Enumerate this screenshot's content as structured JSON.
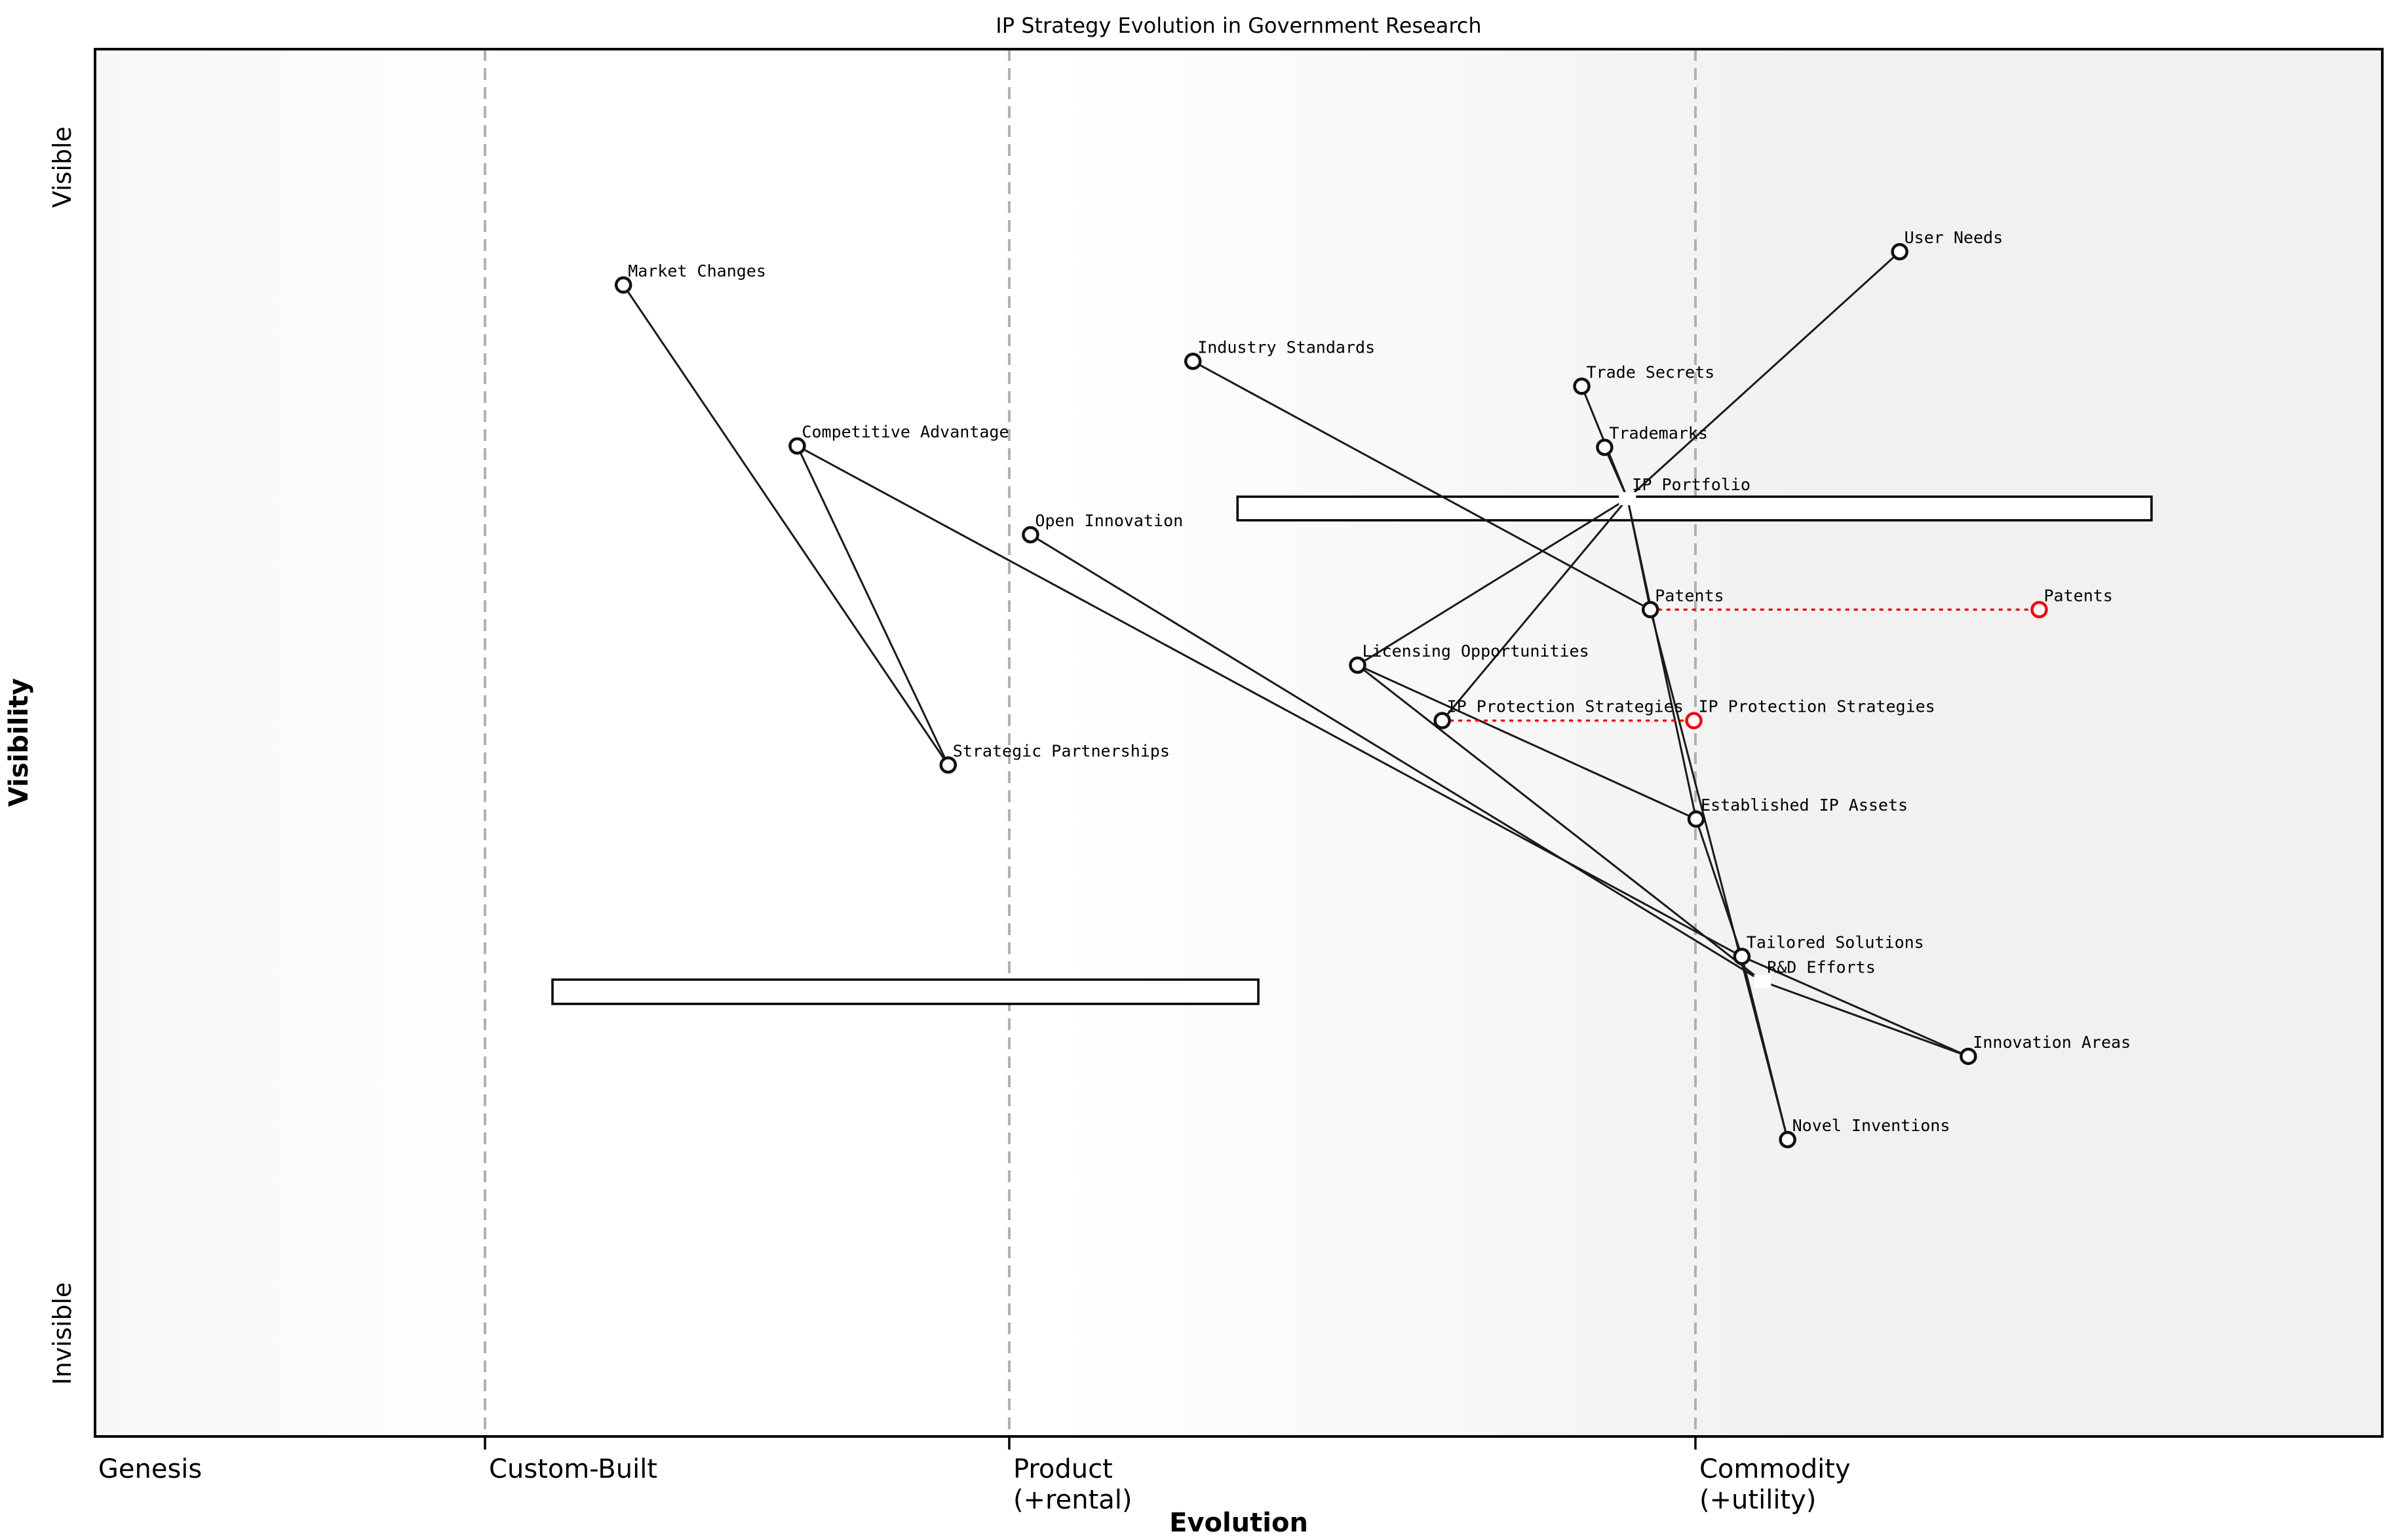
{
  "title": "IP Strategy Evolution in Government Research",
  "colors": {
    "edge": "#1a1a1a",
    "node_stroke": "#111111",
    "node_fill": "#ffffff",
    "evolve_red": "#e90e13",
    "stage_dash": "#b0b0b0",
    "border": "#000000",
    "bg_left": "#f7f7f7",
    "bg_mid": "#ffffff",
    "bg_right": "#f1f1f1"
  },
  "axes": {
    "x_label": "Evolution",
    "y_label": "Visibility",
    "y_top_label": "Visible",
    "y_bottom_label": "Invisible"
  },
  "chart_data": {
    "type": "scatter",
    "title": "IP Strategy Evolution in Government Research",
    "xlabel": "Evolution",
    "ylabel": "Visibility",
    "x_range": [
      0,
      1
    ],
    "y_range": [
      0,
      1
    ],
    "grid": "dashed-stage-boundaries",
    "stages": [
      {
        "label_lines": [
          "Genesis"
        ],
        "evolution": 0.0014,
        "boundary_line": false
      },
      {
        "label_lines": [
          "Custom-Built"
        ],
        "evolution": 0.1705,
        "boundary_line": true
      },
      {
        "label_lines": [
          "Product",
          "(+rental)"
        ],
        "evolution": 0.3997,
        "boundary_line": true
      },
      {
        "label_lines": [
          "Commodity",
          "(+utility)"
        ],
        "evolution": 0.6997,
        "boundary_line": true
      }
    ],
    "nodes": [
      {
        "id": "user_needs",
        "label": "User Needs",
        "evolution": 0.789,
        "visibility": 0.854,
        "marker": "circle",
        "color": "black"
      },
      {
        "id": "market_changes",
        "label": "Market Changes",
        "evolution": 0.231,
        "visibility": 0.83,
        "marker": "circle",
        "color": "black"
      },
      {
        "id": "industry_standards",
        "label": "Industry Standards",
        "evolution": 0.48,
        "visibility": 0.775,
        "marker": "circle",
        "color": "black"
      },
      {
        "id": "trade_secrets",
        "label": "Trade Secrets",
        "evolution": 0.65,
        "visibility": 0.757,
        "marker": "circle",
        "color": "black"
      },
      {
        "id": "competitive_advantage",
        "label": "Competitive Advantage",
        "evolution": 0.307,
        "visibility": 0.714,
        "marker": "circle",
        "color": "black"
      },
      {
        "id": "trademarks",
        "label": "Trademarks",
        "evolution": 0.66,
        "visibility": 0.713,
        "marker": "circle",
        "color": "black"
      },
      {
        "id": "ip_portfolio",
        "label": "IP Portfolio",
        "evolution": 0.67,
        "visibility": 0.676,
        "marker": "square",
        "color": "black"
      },
      {
        "id": "open_innovation",
        "label": "Open Innovation",
        "evolution": 0.409,
        "visibility": 0.65,
        "marker": "circle",
        "color": "black"
      },
      {
        "id": "patents",
        "label": "Patents",
        "evolution": 0.68,
        "visibility": 0.596,
        "marker": "circle",
        "color": "black"
      },
      {
        "id": "patents_evolved",
        "label": "Patents",
        "evolution": 0.85,
        "visibility": 0.596,
        "marker": "circle",
        "color": "red"
      },
      {
        "id": "licensing_opportunities",
        "label": "Licensing Opportunities",
        "evolution": 0.552,
        "visibility": 0.556,
        "marker": "circle",
        "color": "black"
      },
      {
        "id": "ip_protection_strategies",
        "label": "IP Protection Strategies",
        "evolution": 0.589,
        "visibility": 0.516,
        "marker": "circle",
        "color": "black"
      },
      {
        "id": "ipps_evolved",
        "label": "IP Protection Strategies",
        "evolution": 0.699,
        "visibility": 0.516,
        "marker": "circle",
        "color": "red"
      },
      {
        "id": "strategic_partnerships",
        "label": "Strategic Partnerships",
        "evolution": 0.373,
        "visibility": 0.484,
        "marker": "circle",
        "color": "black"
      },
      {
        "id": "established_ip_assets",
        "label": "Established IP Assets",
        "evolution": 0.7,
        "visibility": 0.445,
        "marker": "circle",
        "color": "black"
      },
      {
        "id": "tailored_solutions",
        "label": "Tailored Solutions",
        "evolution": 0.72,
        "visibility": 0.346,
        "marker": "circle",
        "color": "black"
      },
      {
        "id": "rnd_efforts",
        "label": "R&D Efforts",
        "evolution": 0.729,
        "visibility": 0.328,
        "marker": "square",
        "color": "black"
      },
      {
        "id": "innovation_areas",
        "label": "Innovation Areas",
        "evolution": 0.819,
        "visibility": 0.274,
        "marker": "circle",
        "color": "black"
      },
      {
        "id": "novel_inventions",
        "label": "Novel Inventions",
        "evolution": 0.74,
        "visibility": 0.214,
        "marker": "circle",
        "color": "black"
      }
    ],
    "edges": [
      [
        "user_needs",
        "ip_portfolio"
      ],
      [
        "ip_portfolio",
        "trade_secrets"
      ],
      [
        "ip_portfolio",
        "trademarks"
      ],
      [
        "ip_portfolio",
        "patents"
      ],
      [
        "ip_portfolio",
        "licensing_opportunities"
      ],
      [
        "ip_portfolio",
        "ip_protection_strategies"
      ],
      [
        "ip_portfolio",
        "established_ip_assets"
      ],
      [
        "market_changes",
        "strategic_partnerships"
      ],
      [
        "competitive_advantage",
        "strategic_partnerships"
      ],
      [
        "competitive_advantage",
        "tailored_solutions"
      ],
      [
        "open_innovation",
        "rnd_efforts"
      ],
      [
        "industry_standards",
        "patents"
      ],
      [
        "licensing_opportunities",
        "rnd_efforts"
      ],
      [
        "licensing_opportunities",
        "established_ip_assets"
      ],
      [
        "patents",
        "novel_inventions"
      ],
      [
        "established_ip_assets",
        "tailored_solutions"
      ],
      [
        "tailored_solutions",
        "innovation_areas"
      ],
      [
        "rnd_efforts",
        "innovation_areas"
      ],
      [
        "tailored_solutions",
        "novel_inventions"
      ]
    ],
    "evolve_links": [
      {
        "from": "patents",
        "to": "patents_evolved"
      },
      {
        "from": "ip_protection_strategies",
        "to": "ipps_evolved"
      }
    ],
    "pipelines": [
      {
        "id": "pipeline-upper",
        "ev_start": 0.4995,
        "ev_end": 0.8991,
        "vis_top": 0.6774,
        "vis_bottom": 0.6604
      },
      {
        "id": "pipeline-lower",
        "ev_start": 0.2,
        "ev_end": 0.5086,
        "vis_top": 0.3293,
        "vis_bottom": 0.3118
      }
    ]
  }
}
